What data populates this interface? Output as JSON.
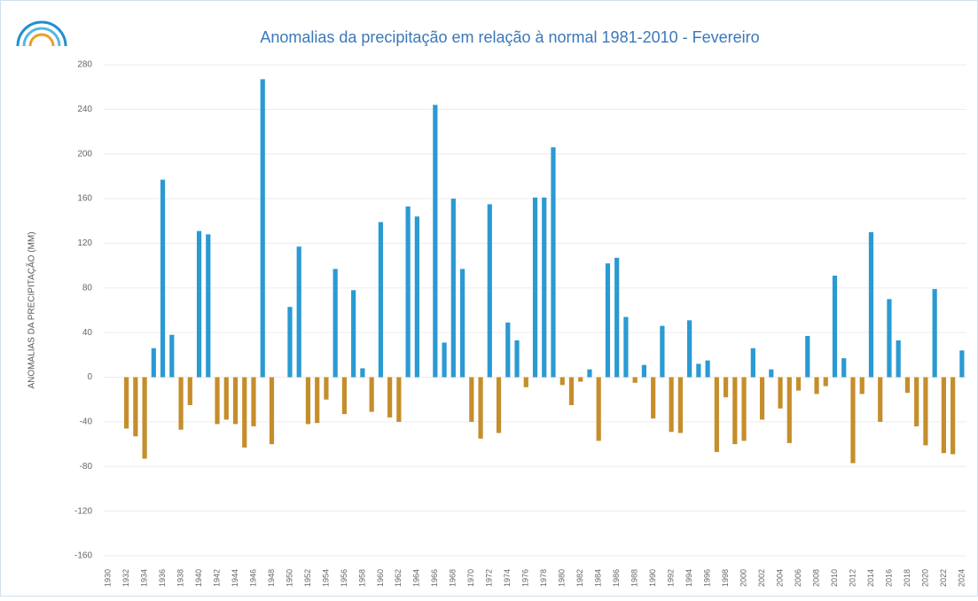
{
  "chart_data": {
    "type": "bar",
    "title": "Anomalias da precipitação em relação à normal 1981-2010 - Fevereiro",
    "y_label": "ANOMALIAS DA PRECIPITAÇÃO (MM)",
    "categories": [
      "1930",
      null,
      "1932",
      null,
      "1934",
      null,
      "1936",
      null,
      "1938",
      null,
      "1940",
      null,
      "1942",
      null,
      "1944",
      null,
      "1946",
      null,
      "1948",
      null,
      "1950",
      null,
      "1952",
      null,
      "1954",
      null,
      "1956",
      null,
      "1958",
      null,
      "1960",
      null,
      "1962",
      null,
      "1964",
      null,
      "1966",
      null,
      "1968",
      null,
      "1970",
      null,
      "1972",
      null,
      "1974",
      null,
      "1976",
      null,
      "1978",
      null,
      "1980",
      null,
      "1982",
      null,
      "1984",
      null,
      "1986",
      null,
      "1988",
      null,
      "1990",
      null,
      "1992",
      null,
      "1994",
      null,
      "1996",
      null,
      "1998",
      null,
      "2000",
      null,
      "2002",
      null,
      "2004",
      null,
      "2006",
      null,
      "2008",
      null,
      "2010",
      null,
      "2012",
      null,
      "2014",
      null,
      "2016",
      null,
      "2018",
      null,
      "2020",
      null,
      "2022",
      null,
      "2024"
    ],
    "values": [
      0,
      0,
      -46,
      -53,
      -73,
      26,
      177,
      38,
      -47,
      -25,
      131,
      128,
      -42,
      -38,
      -42,
      -63,
      -44,
      267,
      -60,
      0,
      63,
      117,
      -42,
      -41,
      -20,
      97,
      -33,
      78,
      8,
      -31,
      139,
      -36,
      -40,
      153,
      144,
      0,
      244,
      31,
      160,
      97,
      -40,
      -55,
      155,
      -50,
      49,
      33,
      -9,
      161,
      161,
      206,
      -7,
      -25,
      -4,
      7,
      -57,
      102,
      107,
      54,
      -5,
      11,
      -37,
      46,
      -49,
      -50,
      51,
      12,
      15,
      -67,
      -18,
      -60,
      -57,
      26,
      -38,
      7,
      -28,
      -59,
      -12,
      37,
      -15,
      -8,
      91,
      17,
      -77,
      -15,
      130,
      -40,
      70,
      33,
      -14,
      -44,
      -61,
      79,
      -68,
      -69,
      24
    ],
    "positive_color": "#2b9ad3",
    "negative_color": "#c58e2c",
    "ylim": [
      -160,
      280
    ],
    "yticks": [
      -160,
      -120,
      -80,
      -40,
      0,
      40,
      80,
      120,
      160,
      200,
      240,
      280
    ],
    "grid": true
  }
}
